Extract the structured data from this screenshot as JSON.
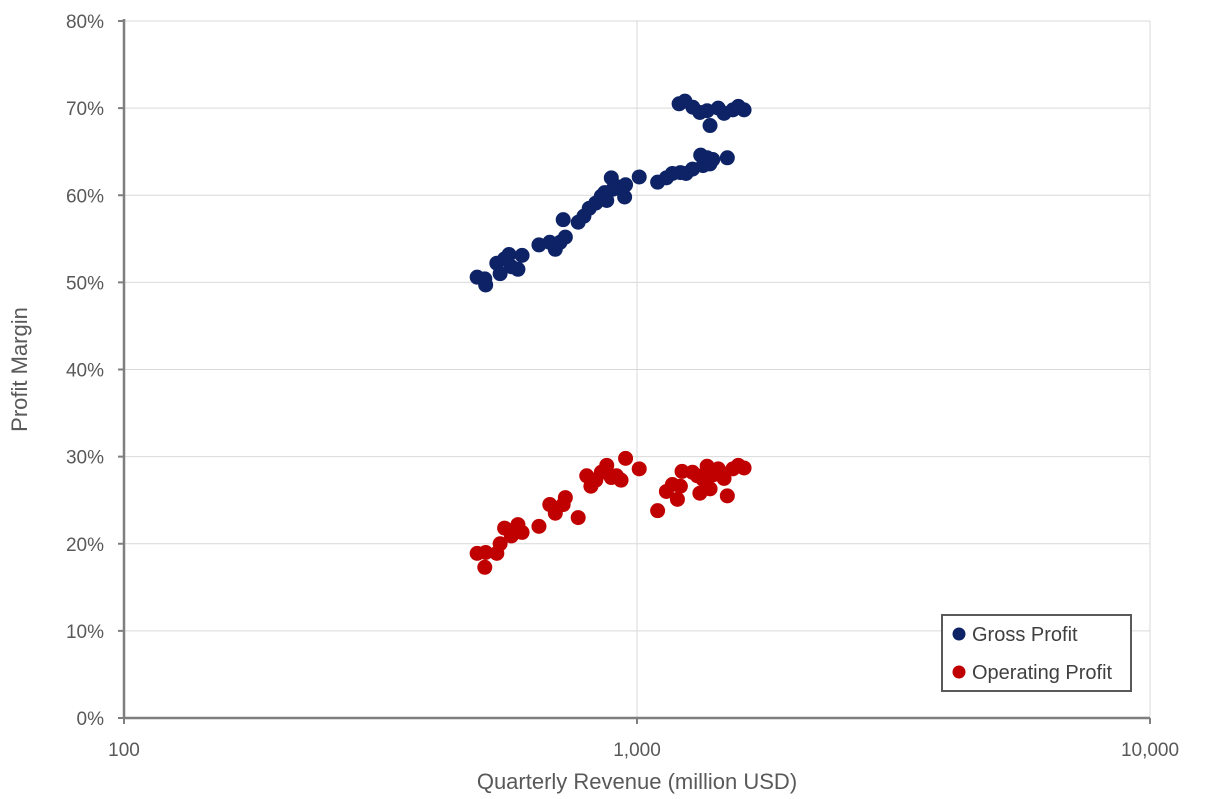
{
  "chart_data": {
    "type": "scatter",
    "xlabel": "Quarterly Revenue (million USD)",
    "ylabel": "Profit Margin",
    "xscale": "log",
    "xlim": [
      100,
      10000
    ],
    "ylim": [
      0,
      80
    ],
    "x_ticks": [
      {
        "value": 100,
        "label": "100"
      },
      {
        "value": 1000,
        "label": "1,000"
      },
      {
        "value": 10000,
        "label": "10,000"
      }
    ],
    "y_ticks": [
      {
        "value": 0,
        "label": "0%"
      },
      {
        "value": 10,
        "label": "10%"
      },
      {
        "value": 20,
        "label": "20%"
      },
      {
        "value": 30,
        "label": "30%"
      },
      {
        "value": 40,
        "label": "40%"
      },
      {
        "value": 50,
        "label": "50%"
      },
      {
        "value": 60,
        "label": "60%"
      },
      {
        "value": 70,
        "label": "70%"
      },
      {
        "value": 80,
        "label": "80%"
      }
    ],
    "grid": true,
    "legend_position": "bottom-right",
    "series": [
      {
        "name": "Gross Profit",
        "color": "#0d2366",
        "points": [
          [
            488,
            50.6
          ],
          [
            507,
            49.7
          ],
          [
            505,
            50.4
          ],
          [
            533,
            52.2
          ],
          [
            541,
            51.0
          ],
          [
            552,
            52.7
          ],
          [
            563,
            53.2
          ],
          [
            569,
            51.8
          ],
          [
            586,
            51.5
          ],
          [
            597,
            53.1
          ],
          [
            644,
            54.3
          ],
          [
            676,
            54.6
          ],
          [
            693,
            53.8
          ],
          [
            708,
            54.6
          ],
          [
            718,
            57.2
          ],
          [
            725,
            55.2
          ],
          [
            768,
            56.9
          ],
          [
            788,
            57.6
          ],
          [
            807,
            58.5
          ],
          [
            831,
            59.1
          ],
          [
            852,
            59.9
          ],
          [
            865,
            60.3
          ],
          [
            873,
            59.4
          ],
          [
            891,
            62.0
          ],
          [
            898,
            60.7
          ],
          [
            912,
            61.0
          ],
          [
            946,
            59.8
          ],
          [
            950,
            61.2
          ],
          [
            1010,
            62.1
          ],
          [
            1097,
            61.5
          ],
          [
            1141,
            62.0
          ],
          [
            1172,
            62.5
          ],
          [
            1215,
            62.6
          ],
          [
            1246,
            62.5
          ],
          [
            1283,
            63.0
          ],
          [
            1331,
            64.6
          ],
          [
            1345,
            63.4
          ],
          [
            1370,
            64.3
          ],
          [
            1387,
            63.6
          ],
          [
            1405,
            64.1
          ],
          [
            1500,
            64.3
          ],
          [
            1208,
            70.5
          ],
          [
            1240,
            70.8
          ],
          [
            1285,
            70.1
          ],
          [
            1326,
            69.5
          ],
          [
            1370,
            69.7
          ],
          [
            1388,
            68.0
          ],
          [
            1440,
            70.0
          ],
          [
            1478,
            69.4
          ],
          [
            1538,
            69.8
          ],
          [
            1576,
            70.2
          ],
          [
            1617,
            69.8
          ]
        ]
      },
      {
        "name": "Operating Profit",
        "color": "#c00000",
        "points": [
          [
            488,
            18.9
          ],
          [
            505,
            17.3
          ],
          [
            507,
            19.0
          ],
          [
            533,
            18.9
          ],
          [
            541,
            20.0
          ],
          [
            552,
            21.8
          ],
          [
            569,
            20.9
          ],
          [
            586,
            22.2
          ],
          [
            597,
            21.3
          ],
          [
            644,
            22.0
          ],
          [
            676,
            24.5
          ],
          [
            693,
            23.5
          ],
          [
            718,
            24.5
          ],
          [
            725,
            25.3
          ],
          [
            768,
            23.0
          ],
          [
            798,
            27.8
          ],
          [
            813,
            26.6
          ],
          [
            831,
            27.3
          ],
          [
            852,
            28.2
          ],
          [
            873,
            29.0
          ],
          [
            891,
            27.6
          ],
          [
            912,
            27.8
          ],
          [
            931,
            27.3
          ],
          [
            950,
            29.8
          ],
          [
            1010,
            28.6
          ],
          [
            1097,
            23.8
          ],
          [
            1141,
            26.0
          ],
          [
            1172,
            26.8
          ],
          [
            1199,
            25.1
          ],
          [
            1215,
            26.6
          ],
          [
            1224,
            28.3
          ],
          [
            1283,
            28.2
          ],
          [
            1311,
            27.8
          ],
          [
            1326,
            25.8
          ],
          [
            1345,
            27.4
          ],
          [
            1370,
            28.9
          ],
          [
            1388,
            26.3
          ],
          [
            1405,
            27.9
          ],
          [
            1440,
            28.6
          ],
          [
            1478,
            27.5
          ],
          [
            1500,
            25.5
          ],
          [
            1538,
            28.6
          ],
          [
            1576,
            29.0
          ],
          [
            1617,
            28.7
          ]
        ]
      }
    ]
  }
}
